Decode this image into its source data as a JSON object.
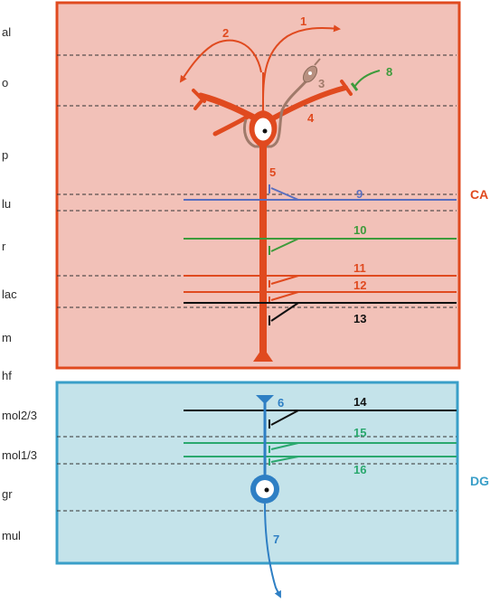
{
  "colors": {
    "ca_fill": "#f2c1b8",
    "ca_border": "#e04a1f",
    "dg_fill": "#c4e3ea",
    "dg_border": "#3a9fc8",
    "pyramidal": "#e04a1f",
    "granule": "#2e7fc4",
    "basket": "#a07a6a",
    "green": "#3d9b3b",
    "blue": "#5a6fbf",
    "black": "#111111",
    "teal": "#2aa86e",
    "label": "#2b2b2b"
  },
  "layers": {
    "al": "al",
    "o": "o",
    "p": "p",
    "lu": "lu",
    "r": "r",
    "lac": "lac",
    "m": "m",
    "hf": "hf",
    "mol23": "mol2/3",
    "mol13": "mol1/3",
    "gr": "gr",
    "mul": "mul"
  },
  "regions": {
    "ca": "CA",
    "dg": "DG"
  },
  "numbers": {
    "n1": "1",
    "n2": "2",
    "n3": "3",
    "n4": "4",
    "n5": "5",
    "n6": "6",
    "n7": "7",
    "n8": "8",
    "n9": "9",
    "n10": "10",
    "n11": "11",
    "n12": "12",
    "n13": "13",
    "n14": "14",
    "n15": "15",
    "n16": "16"
  }
}
